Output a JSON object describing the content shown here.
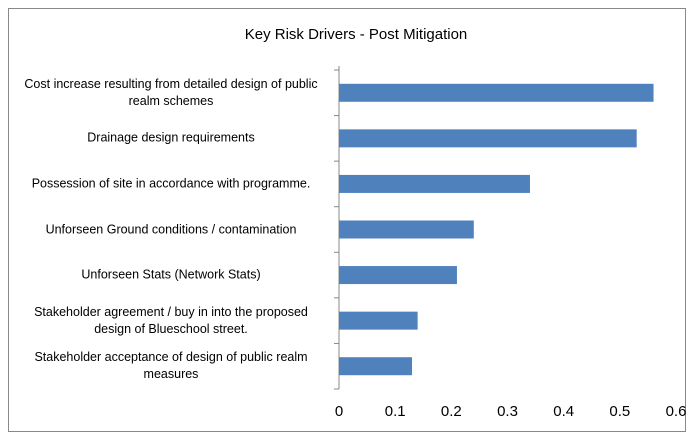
{
  "chart_data": {
    "type": "bar",
    "orientation": "horizontal",
    "title": "Key Risk Drivers - Post Mitigation",
    "categories": [
      "Cost increase resulting from detailed design of public realm schemes",
      "Drainage design requirements",
      "Possession of site in accordance with programme.",
      "Unforseen Ground conditions / contamination",
      "Unforseen Stats (Network Stats)",
      "Stakeholder agreement / buy in into the proposed design of Blueschool street.",
      "Stakeholder acceptance of design of public realm measures"
    ],
    "values": [
      0.56,
      0.53,
      0.34,
      0.24,
      0.21,
      0.14,
      0.13
    ],
    "color": "#4f81bd",
    "xlim": [
      0,
      0.6
    ],
    "xticks": [
      0,
      0.1,
      0.2,
      0.3,
      0.4,
      0.5,
      0.6
    ],
    "grid": false
  }
}
